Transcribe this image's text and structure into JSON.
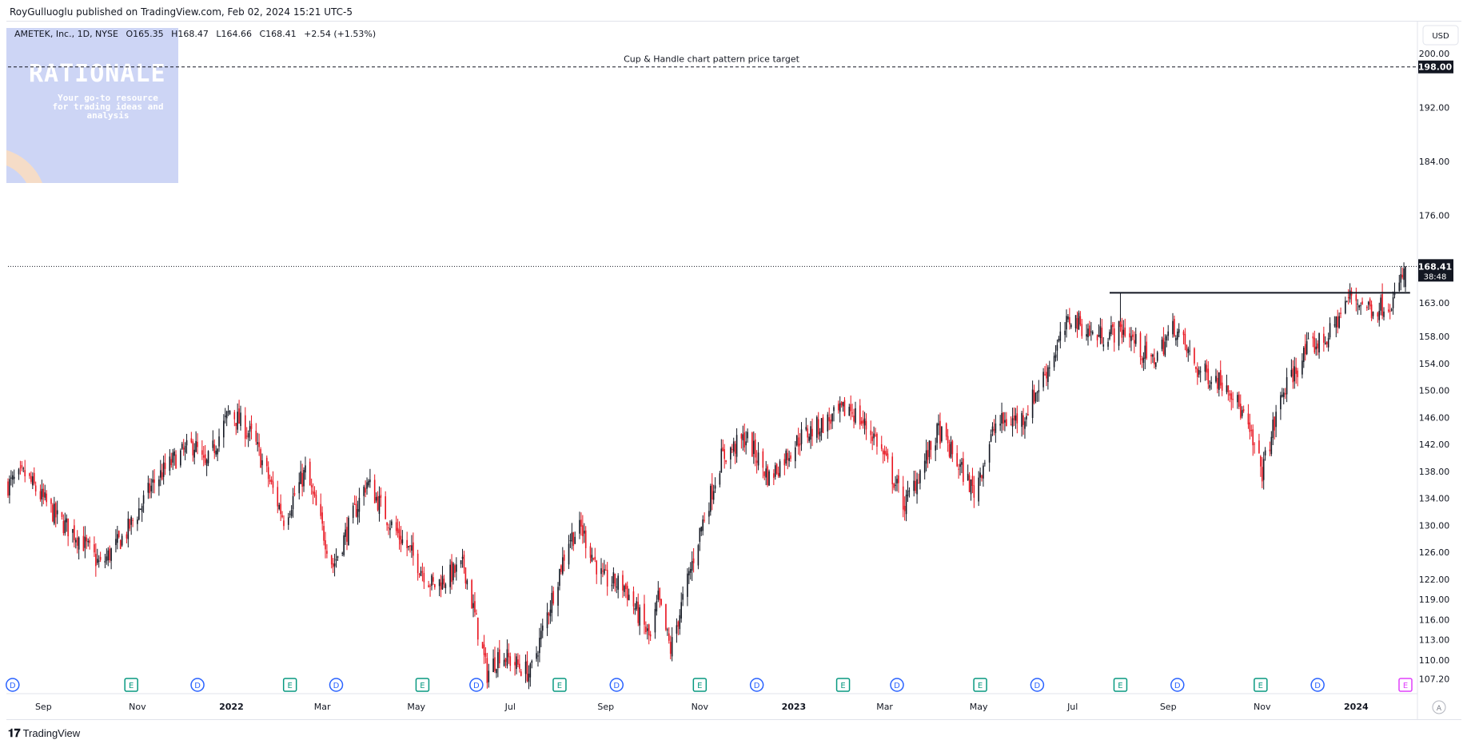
{
  "header": {
    "published_text": "RoyGulluoglu published on TradingView.com, Feb 02, 2024 15:21 UTC-5"
  },
  "legend": {
    "symbol_text": "AMETEK, Inc., 1D, NYSE",
    "open": "O165.35",
    "high": "H168.47",
    "low": "L164.66",
    "close": "C168.41",
    "change": "+2.54 (+1.53%)"
  },
  "watermark": {
    "title": "RATIONALE",
    "subtitle": "Your go-to resource for trading ideas and analysis"
  },
  "currency_label": "USD",
  "footer": {
    "brand": "TradingView",
    "scroll_icon": "A"
  },
  "colors": {
    "up": "#131722",
    "down": "#e8141f",
    "accent_event": "#2962ff",
    "earnings": "#089981"
  },
  "chart_data": {
    "type": "candlestick",
    "title": "AMETEK, Inc., 1D, NYSE",
    "xlabel": "",
    "ylabel": "",
    "ylim": [
      105.5,
      202
    ],
    "y_ticks": [
      "200.00",
      "192.00",
      "184.00",
      "176.00",
      "168.41",
      "163.00",
      "158.00",
      "154.00",
      "150.00",
      "146.00",
      "142.00",
      "138.00",
      "134.00",
      "130.00",
      "126.00",
      "122.00",
      "119.00",
      "116.00",
      "113.00",
      "110.00",
      "107.20"
    ],
    "y_tick_values": [
      200,
      192,
      184,
      176,
      168.41,
      163,
      158,
      154,
      150,
      146,
      142,
      138,
      134,
      130,
      126,
      122,
      119,
      116,
      113,
      110,
      107.2
    ],
    "x_ticks": [
      "Sep",
      "Nov",
      "2022",
      "Mar",
      "May",
      "Jul",
      "Sep",
      "Nov",
      "2023",
      "Mar",
      "May",
      "Jul",
      "Sep",
      "Nov",
      "2024"
    ],
    "x_tick_dates": [
      "2021-09-01",
      "2021-11-01",
      "2022-01-01",
      "2022-03-01",
      "2022-05-01",
      "2022-07-01",
      "2022-09-01",
      "2022-11-01",
      "2023-01-01",
      "2023-03-01",
      "2023-05-01",
      "2023-07-01",
      "2023-09-01",
      "2023-11-01",
      "2024-01-01"
    ],
    "date_range": [
      "2021-08-09",
      "2024-02-02"
    ],
    "close_anchors": [
      [
        "2021-08-09",
        136.0
      ],
      [
        "2021-08-20",
        137.5
      ],
      [
        "2021-09-10",
        131.0
      ],
      [
        "2021-09-25",
        128.0
      ],
      [
        "2021-10-08",
        124.0
      ],
      [
        "2021-10-25",
        129.0
      ],
      [
        "2021-11-12",
        136.5
      ],
      [
        "2021-11-26",
        140.0
      ],
      [
        "2021-12-08",
        142.0
      ],
      [
        "2021-12-15",
        138.5
      ],
      [
        "2021-12-31",
        147.0
      ],
      [
        "2022-01-15",
        143.0
      ],
      [
        "2022-02-04",
        131.0
      ],
      [
        "2022-02-18",
        138.0
      ],
      [
        "2022-03-08",
        124.0
      ],
      [
        "2022-03-30",
        136.5
      ],
      [
        "2022-04-15",
        130.0
      ],
      [
        "2022-05-12",
        121.0
      ],
      [
        "2022-06-01",
        124.0
      ],
      [
        "2022-06-16",
        108.0
      ],
      [
        "2022-06-24",
        111.0
      ],
      [
        "2022-07-14",
        108.0
      ],
      [
        "2022-08-08",
        128.0
      ],
      [
        "2022-08-16",
        129.5
      ],
      [
        "2022-08-30",
        122.0
      ],
      [
        "2022-09-13",
        121.0
      ],
      [
        "2022-09-30",
        113.0
      ],
      [
        "2022-10-05",
        119.0
      ],
      [
        "2022-10-13",
        111.5
      ],
      [
        "2022-11-01",
        129.0
      ],
      [
        "2022-11-15",
        140.0
      ],
      [
        "2022-12-01",
        143.0
      ],
      [
        "2022-12-16",
        137.0
      ],
      [
        "2023-01-05",
        143.0
      ],
      [
        "2023-01-27",
        146.0
      ],
      [
        "2023-02-06",
        147.5
      ],
      [
        "2023-02-23",
        143.0
      ],
      [
        "2023-03-14",
        133.0
      ],
      [
        "2023-04-05",
        144.0
      ],
      [
        "2023-04-28",
        135.0
      ],
      [
        "2023-05-12",
        145.0
      ],
      [
        "2023-05-30",
        146.0
      ],
      [
        "2023-06-12",
        152.0
      ],
      [
        "2023-06-30",
        161.0
      ],
      [
        "2023-07-15",
        158.0
      ],
      [
        "2023-08-04",
        159.0
      ],
      [
        "2023-08-21",
        154.0
      ],
      [
        "2023-09-05",
        159.5
      ],
      [
        "2023-09-20",
        153.0
      ],
      [
        "2023-10-10",
        151.0
      ],
      [
        "2023-10-20",
        146.0
      ],
      [
        "2023-11-01",
        138.0
      ],
      [
        "2023-11-14",
        149.5
      ],
      [
        "2023-11-30",
        156.0
      ],
      [
        "2023-12-14",
        158.0
      ],
      [
        "2023-12-28",
        164.0
      ],
      [
        "2024-01-12",
        162.0
      ],
      [
        "2024-01-26",
        163.5
      ],
      [
        "2024-02-02",
        168.41
      ]
    ],
    "last_ohlc": {
      "open": 165.35,
      "high": 168.47,
      "low": 164.66,
      "close": 168.41
    },
    "last_price_label": "168.41",
    "countdown_label": "38:48",
    "annotations": [
      {
        "text": "Cup & Handle chart pattern price target",
        "type": "horizontal_dashed",
        "y": 198.0,
        "label": "198.00"
      },
      {
        "text": "",
        "type": "horizontal_line",
        "y": 164.5,
        "x_start": "2023-07-25",
        "x_end": "2024-02-05",
        "marker_date": "2023-08-01"
      }
    ],
    "events": [
      {
        "kind": "D",
        "date": "2021-08-12"
      },
      {
        "kind": "E",
        "date": "2021-10-28"
      },
      {
        "kind": "D",
        "date": "2021-12-10"
      },
      {
        "kind": "E",
        "date": "2022-02-08"
      },
      {
        "kind": "D",
        "date": "2022-03-10"
      },
      {
        "kind": "E",
        "date": "2022-05-05"
      },
      {
        "kind": "D",
        "date": "2022-06-09"
      },
      {
        "kind": "E",
        "date": "2022-08-02"
      },
      {
        "kind": "D",
        "date": "2022-09-08"
      },
      {
        "kind": "E",
        "date": "2022-11-01"
      },
      {
        "kind": "D",
        "date": "2022-12-08"
      },
      {
        "kind": "E",
        "date": "2023-02-02"
      },
      {
        "kind": "D",
        "date": "2023-03-09"
      },
      {
        "kind": "E",
        "date": "2023-05-02"
      },
      {
        "kind": "D",
        "date": "2023-06-08"
      },
      {
        "kind": "E",
        "date": "2023-08-01"
      },
      {
        "kind": "D",
        "date": "2023-09-07"
      },
      {
        "kind": "E",
        "date": "2023-10-31"
      },
      {
        "kind": "D",
        "date": "2023-12-07"
      },
      {
        "kind": "E",
        "date": "2024-02-02",
        "upcoming": true
      }
    ],
    "grid": false,
    "legend_position": "top-left"
  }
}
